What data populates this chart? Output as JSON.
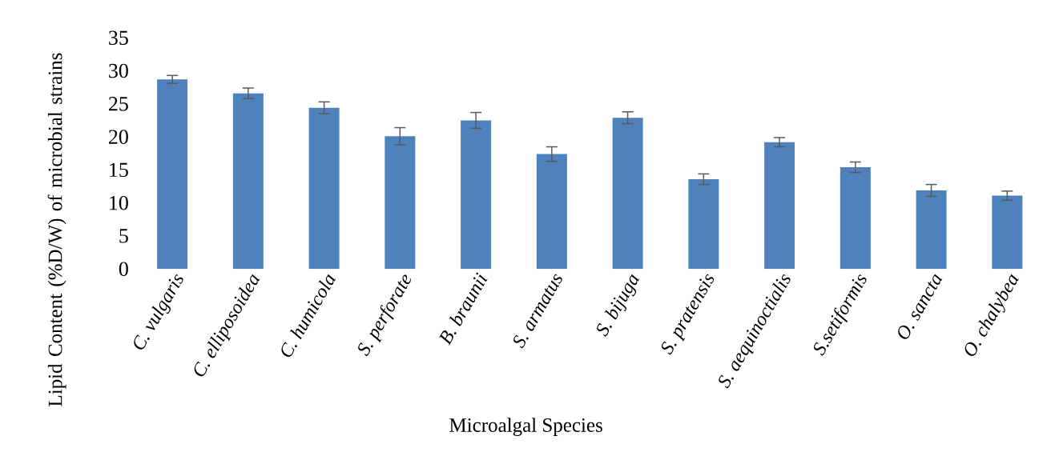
{
  "chart_data": {
    "type": "bar",
    "xlabel": "Microalgal Species",
    "ylabel": "Lipid Content (%D/W) of microbial strains",
    "categories": [
      "*C. vulgaris*",
      "*C. elliposoidea*",
      "*C. humicola*",
      "*S. perforate*",
      "*B. braunii*",
      "*S. armatus*",
      "*S. bijuga*",
      "*S. pratensis*",
      "*S. aequinoctialis*",
      "*S.setiformis*",
      "*O. sancta*",
      "*O. chalybea*"
    ],
    "values": [
      28.7,
      26.6,
      24.4,
      20.1,
      22.5,
      17.4,
      22.9,
      13.6,
      19.2,
      15.4,
      11.9,
      11.1
    ],
    "errors": [
      0.6,
      0.8,
      0.9,
      1.3,
      1.2,
      1.1,
      0.9,
      0.8,
      0.7,
      0.8,
      0.9,
      0.7
    ],
    "color": "#4f81bd",
    "ylim": [
      0,
      35
    ],
    "yticks": [
      0,
      5,
      10,
      15,
      20,
      25,
      30,
      35
    ],
    "grid": false,
    "legend": false
  }
}
